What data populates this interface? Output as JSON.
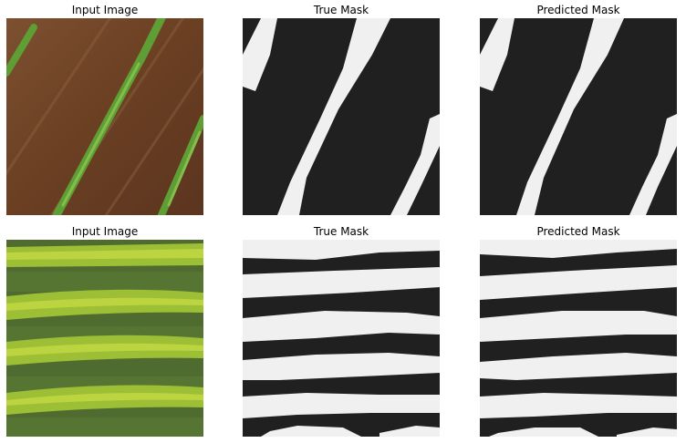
{
  "figure": {
    "rows": [
      {
        "titles": {
          "input": "Input Image",
          "true_mask": "True Mask",
          "pred_mask": "Predicted Mask"
        }
      },
      {
        "titles": {
          "input": "Input Image",
          "true_mask": "True Mask",
          "pred_mask": "Predicted Mask"
        }
      }
    ]
  },
  "colors": {
    "mask_background": "#202020",
    "mask_foreground": "#f0f0f0",
    "soil": "#7a4a2a",
    "crop_green": "#6fae3c",
    "grass": "#4f6b2f",
    "vine_yellow_green": "#b8d23a"
  }
}
